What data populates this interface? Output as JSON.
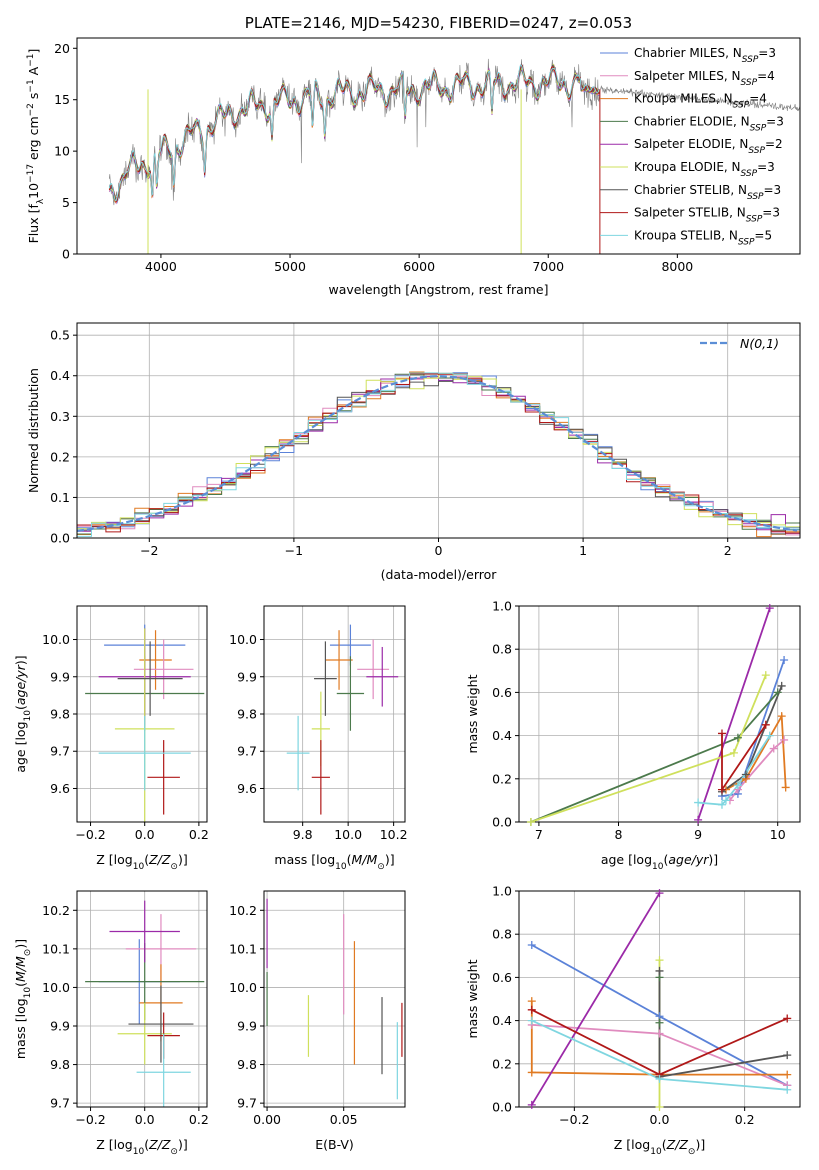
{
  "colors": {
    "chabrier_miles": "#5b82d8",
    "salpeter_miles": "#e08bbf",
    "kroupa_miles": "#e07a22",
    "chabrier_elodie": "#4c7a4c",
    "salpeter_elodie": "#9b2aa8",
    "kroupa_elodie": "#cfe05c",
    "chabrier_stelib": "#555555",
    "salpeter_stelib": "#b01818",
    "kroupa_stelib": "#7fd6e0",
    "data_grey": "#808080"
  },
  "chart_data": [
    {
      "id": "spectrum",
      "type": "line",
      "title": "PLATE=2146, MJD=54230, FIBERID=0247, z=0.053",
      "xlabel": "wavelength [Angstrom, rest frame]",
      "ylabel": "Flux [f_λ10^{-17} erg cm^{-2} s^{-1} A^{-1}]",
      "xlim": [
        3350,
        8950
      ],
      "ylim": [
        0,
        21
      ],
      "xticks": [
        4000,
        5000,
        6000,
        7000,
        8000
      ],
      "yticks": [
        0,
        5,
        10,
        15,
        20
      ],
      "grid": false,
      "legend_position": "top-right",
      "continuum_points": [
        [
          3600,
          6
        ],
        [
          3750,
          8
        ],
        [
          3900,
          9
        ],
        [
          4100,
          10.5
        ],
        [
          4300,
          12
        ],
        [
          4600,
          14
        ],
        [
          5000,
          15
        ],
        [
          5500,
          15.8
        ],
        [
          6000,
          16.1
        ],
        [
          6500,
          16.5
        ],
        [
          7000,
          16.7
        ],
        [
          7400,
          16.6
        ]
      ],
      "data_range": [
        3600,
        9150
      ],
      "model_range": [
        3600,
        7400
      ],
      "vertical_spikes": [
        [
          3900,
          "kroupa_elodie"
        ],
        [
          6790,
          "kroupa_elodie"
        ],
        [
          7400,
          "salpeter_stelib"
        ]
      ],
      "series": [
        {
          "name": "Chabrier MILES",
          "nssp": "3",
          "color_key": "chabrier_miles"
        },
        {
          "name": "Salpeter MILES",
          "nssp": "4",
          "color_key": "salpeter_miles"
        },
        {
          "name": "Kroupa MILES",
          "nssp": "4",
          "color_key": "kroupa_miles"
        },
        {
          "name": "Chabrier ELODIE",
          "nssp": "3",
          "color_key": "chabrier_elodie"
        },
        {
          "name": "Salpeter ELODIE",
          "nssp": "2",
          "color_key": "salpeter_elodie"
        },
        {
          "name": "Kroupa ELODIE",
          "nssp": "3",
          "color_key": "kroupa_elodie"
        },
        {
          "name": "Chabrier STELIB",
          "nssp": "3",
          "color_key": "chabrier_stelib"
        },
        {
          "name": "Salpeter STELIB",
          "nssp": "3",
          "color_key": "salpeter_stelib"
        },
        {
          "name": "Kroupa STELIB",
          "nssp": "5",
          "color_key": "kroupa_stelib"
        }
      ]
    },
    {
      "id": "residuals",
      "type": "area",
      "xlabel": "(data-model)/error",
      "ylabel": "Normed distribution",
      "xlim": [
        -2.5,
        2.5
      ],
      "ylim": [
        0,
        0.53
      ],
      "xticks": [
        -2,
        -1,
        0,
        1,
        2
      ],
      "yticks": [
        0.0,
        0.1,
        0.2,
        0.3,
        0.4,
        0.5
      ],
      "grid": true,
      "bin_width": 0.1,
      "gaussian_label": "N(0,1)",
      "gaussian_color": "#5b8ed6",
      "legend_position": "top-right"
    },
    {
      "id": "age_vs_Z",
      "type": "scatter",
      "xlabel": "Z [log10(Z/Z⊙)]",
      "ylabel": "age [log10(age/yr)]",
      "xlim": [
        -0.25,
        0.23
      ],
      "ylim": [
        9.51,
        10.09
      ],
      "xticks": [
        -0.2,
        0.0,
        0.2
      ],
      "yticks": [
        9.6,
        9.7,
        9.8,
        9.9,
        10.0
      ],
      "grid": true,
      "points": [
        {
          "c": "chabrier_miles",
          "x": 0.0,
          "y": 9.985,
          "xe": 0.15,
          "ye": 0.055
        },
        {
          "c": "kroupa_miles",
          "x": 0.04,
          "y": 9.945,
          "xe": 0.06,
          "ye": 0.08
        },
        {
          "c": "salpeter_miles",
          "x": 0.07,
          "y": 9.92,
          "xe": 0.11,
          "ye": 0.08
        },
        {
          "c": "chabrier_elodie",
          "x": 0.0,
          "y": 9.855,
          "xe": 0.22,
          "ye": 0.1
        },
        {
          "c": "salpeter_elodie",
          "x": 0.0,
          "y": 9.9,
          "xe": 0.17,
          "ye": 0.13
        },
        {
          "c": "kroupa_elodie",
          "x": 0.0,
          "y": 9.76,
          "xe": 0.11,
          "ye": 0.27
        },
        {
          "c": "chabrier_stelib",
          "x": 0.02,
          "y": 9.895,
          "xe": 0.12,
          "ye": 0.1
        },
        {
          "c": "salpeter_stelib",
          "x": 0.07,
          "y": 9.63,
          "xe": 0.06,
          "ye": 0.1
        },
        {
          "c": "kroupa_stelib",
          "x": 0.0,
          "y": 9.695,
          "xe": 0.17,
          "ye": 0.1
        }
      ]
    },
    {
      "id": "age_vs_mass",
      "type": "scatter",
      "xlabel": "mass [log10(M/M⊙)]",
      "ylabel": "",
      "xlim": [
        9.63,
        10.25
      ],
      "ylim": [
        9.51,
        10.09
      ],
      "xticks": [
        9.8,
        10.0,
        10.2
      ],
      "yticks": [
        9.6,
        9.7,
        9.8,
        9.9,
        10.0
      ],
      "grid": true,
      "points": [
        {
          "c": "chabrier_miles",
          "x": 10.01,
          "y": 9.985,
          "xe": 0.09,
          "ye": 0.055
        },
        {
          "c": "kroupa_miles",
          "x": 9.96,
          "y": 9.945,
          "xe": 0.06,
          "ye": 0.08
        },
        {
          "c": "salpeter_miles",
          "x": 10.11,
          "y": 9.92,
          "xe": 0.07,
          "ye": 0.08
        },
        {
          "c": "chabrier_elodie",
          "x": 10.01,
          "y": 9.855,
          "xe": 0.06,
          "ye": 0.1
        },
        {
          "c": "salpeter_elodie",
          "x": 10.15,
          "y": 9.9,
          "xe": 0.07,
          "ye": 0.08
        },
        {
          "c": "kroupa_elodie",
          "x": 9.88,
          "y": 9.76,
          "xe": 0.04,
          "ye": 0.1
        },
        {
          "c": "chabrier_stelib",
          "x": 9.9,
          "y": 9.895,
          "xe": 0.05,
          "ye": 0.1
        },
        {
          "c": "salpeter_stelib",
          "x": 9.88,
          "y": 9.63,
          "xe": 0.04,
          "ye": 0.1
        },
        {
          "c": "kroupa_stelib",
          "x": 9.78,
          "y": 9.695,
          "xe": 0.05,
          "ye": 0.1
        }
      ]
    },
    {
      "id": "weight_vs_age",
      "type": "line",
      "xlabel": "age [log10(age/yr)]",
      "ylabel": "mass weight",
      "xlim": [
        6.75,
        10.28
      ],
      "ylim": [
        0,
        1.0
      ],
      "xticks": [
        7,
        8,
        9,
        10
      ],
      "yticks": [
        0.0,
        0.2,
        0.4,
        0.6,
        0.8,
        1.0
      ],
      "grid": true,
      "series": [
        {
          "c": "chabrier_miles",
          "pts": [
            [
              9.3,
              0.12
            ],
            [
              9.5,
              0.13
            ],
            [
              10.08,
              0.75
            ]
          ]
        },
        {
          "c": "salpeter_miles",
          "pts": [
            [
              9.4,
              0.1
            ],
            [
              9.5,
              0.15
            ],
            [
              9.95,
              0.34
            ],
            [
              10.08,
              0.38
            ]
          ]
        },
        {
          "c": "kroupa_miles",
          "pts": [
            [
              9.35,
              0.15
            ],
            [
              9.6,
              0.2
            ],
            [
              10.05,
              0.49
            ],
            [
              10.1,
              0.16
            ]
          ]
        },
        {
          "c": "chabrier_elodie",
          "pts": [
            [
              6.9,
              0.0
            ],
            [
              9.5,
              0.39
            ],
            [
              10.0,
              0.6
            ]
          ]
        },
        {
          "c": "salpeter_elodie",
          "pts": [
            [
              9.0,
              0.01
            ],
            [
              9.9,
              0.99
            ]
          ]
        },
        {
          "c": "kroupa_elodie",
          "pts": [
            [
              6.9,
              0.0
            ],
            [
              9.45,
              0.32
            ],
            [
              9.85,
              0.68
            ]
          ]
        },
        {
          "c": "chabrier_stelib",
          "pts": [
            [
              9.3,
              0.14
            ],
            [
              9.6,
              0.22
            ],
            [
              10.05,
              0.63
            ]
          ]
        },
        {
          "c": "salpeter_stelib",
          "pts": [
            [
              9.3,
              0.41
            ],
            [
              9.3,
              0.15
            ],
            [
              9.85,
              0.45
            ]
          ]
        },
        {
          "c": "kroupa_stelib",
          "pts": [
            [
              9.0,
              0.09
            ],
            [
              9.3,
              0.08
            ],
            [
              9.35,
              0.1
            ],
            [
              9.5,
              0.17
            ],
            [
              9.9,
              0.4
            ]
          ]
        }
      ]
    },
    {
      "id": "mass_vs_Z",
      "type": "scatter",
      "xlabel": "Z [log10(Z/Z⊙)]",
      "ylabel": "mass [log10(M/M⊙)]",
      "xlim": [
        -0.25,
        0.23
      ],
      "ylim": [
        9.69,
        10.25
      ],
      "xticks": [
        -0.2,
        0.0,
        0.2
      ],
      "yticks": [
        9.7,
        9.8,
        9.9,
        10.0,
        10.1,
        10.2
      ],
      "grid": true,
      "points": [
        {
          "c": "chabrier_miles",
          "x": -0.02,
          "y": 10.015,
          "xe": 0.15,
          "ye": 0.11
        },
        {
          "c": "salpeter_miles",
          "x": 0.06,
          "y": 10.1,
          "xe": 0.13,
          "ye": 0.09
        },
        {
          "c": "kroupa_miles",
          "x": 0.06,
          "y": 9.96,
          "xe": 0.08,
          "ye": 0.1
        },
        {
          "c": "chabrier_elodie",
          "x": 0.0,
          "y": 10.015,
          "xe": 0.22,
          "ye": 0.1
        },
        {
          "c": "salpeter_elodie",
          "x": 0.0,
          "y": 10.145,
          "xe": 0.13,
          "ye": 0.08
        },
        {
          "c": "kroupa_elodie",
          "x": 0.0,
          "y": 9.88,
          "xe": 0.1,
          "ye": 0.08
        },
        {
          "c": "chabrier_stelib",
          "x": 0.06,
          "y": 9.905,
          "xe": 0.12,
          "ye": 0.1
        },
        {
          "c": "salpeter_stelib",
          "x": 0.07,
          "y": 9.875,
          "xe": 0.06,
          "ye": 0.06
        },
        {
          "c": "kroupa_stelib",
          "x": 0.07,
          "y": 9.78,
          "xe": 0.1,
          "ye": 0.1
        }
      ]
    },
    {
      "id": "mass_vs_ebv",
      "type": "scatter",
      "xlabel": "E(B-V)",
      "ylabel": "",
      "xlim": [
        -0.002,
        0.09
      ],
      "ylim": [
        9.69,
        10.25
      ],
      "xticks": [
        0.0,
        0.05
      ],
      "yticks": [
        9.7,
        9.8,
        9.9,
        10.0,
        10.1,
        10.2
      ],
      "grid": true,
      "points": [
        {
          "c": "salpeter_elodie",
          "x": 0.0,
          "y": 10.14,
          "xe": 0,
          "ye": 0.09
        },
        {
          "c": "chabrier_elodie",
          "x": 0.0,
          "y": 9.97,
          "xe": 0,
          "ye": 0.07
        },
        {
          "c": "salpeter_miles",
          "x": 0.05,
          "y": 10.06,
          "xe": 0,
          "ye": 0.13
        },
        {
          "c": "kroupa_miles",
          "x": 0.057,
          "y": 9.96,
          "xe": 0,
          "ye": 0.16
        },
        {
          "c": "kroupa_elodie",
          "x": 0.027,
          "y": 9.9,
          "xe": 0,
          "ye": 0.08
        },
        {
          "c": "chabrier_stelib",
          "x": 0.075,
          "y": 9.875,
          "xe": 0,
          "ye": 0.1
        },
        {
          "c": "salpeter_stelib",
          "x": 0.088,
          "y": 9.89,
          "xe": 0,
          "ye": 0.07
        },
        {
          "c": "kroupa_stelib",
          "x": 0.085,
          "y": 9.81,
          "xe": 0,
          "ye": 0.1
        }
      ]
    },
    {
      "id": "weight_vs_Z",
      "type": "line",
      "xlabel": "Z [log10(Z/Z⊙)]",
      "ylabel": "mass weight",
      "xlim": [
        -0.33,
        0.33
      ],
      "ylim": [
        0,
        1.0
      ],
      "xticks": [
        -0.2,
        0.0,
        0.2
      ],
      "yticks": [
        0.0,
        0.2,
        0.4,
        0.6,
        0.8,
        1.0
      ],
      "grid": true,
      "series": [
        {
          "c": "chabrier_miles",
          "pts": [
            [
              -0.3,
              0.75
            ],
            [
              0.0,
              0.42
            ],
            [
              0.3,
              0.1
            ]
          ]
        },
        {
          "c": "salpeter_miles",
          "pts": [
            [
              -0.3,
              0.38
            ],
            [
              0.0,
              0.34
            ],
            [
              0.3,
              0.1
            ]
          ]
        },
        {
          "c": "kroupa_miles",
          "pts": [
            [
              -0.3,
              0.49
            ],
            [
              -0.3,
              0.16
            ],
            [
              0.0,
              0.15
            ],
            [
              0.3,
              0.15
            ]
          ]
        },
        {
          "c": "chabrier_elodie",
          "pts": [
            [
              0.0,
              0.6
            ],
            [
              0.0,
              0.39
            ]
          ]
        },
        {
          "c": "salpeter_elodie",
          "pts": [
            [
              -0.3,
              0.01
            ],
            [
              0.0,
              0.99
            ]
          ]
        },
        {
          "c": "kroupa_elodie",
          "pts": [
            [
              0.0,
              0.68
            ],
            [
              0.0,
              0.0
            ]
          ]
        },
        {
          "c": "chabrier_stelib",
          "pts": [
            [
              0.0,
              0.63
            ],
            [
              0.0,
              0.14
            ],
            [
              0.3,
              0.24
            ]
          ]
        },
        {
          "c": "salpeter_stelib",
          "pts": [
            [
              -0.3,
              0.45
            ],
            [
              0.0,
              0.15
            ],
            [
              0.3,
              0.41
            ]
          ]
        },
        {
          "c": "kroupa_stelib",
          "pts": [
            [
              -0.3,
              0.4
            ],
            [
              0.0,
              0.13
            ],
            [
              0.3,
              0.08
            ]
          ]
        }
      ]
    }
  ]
}
